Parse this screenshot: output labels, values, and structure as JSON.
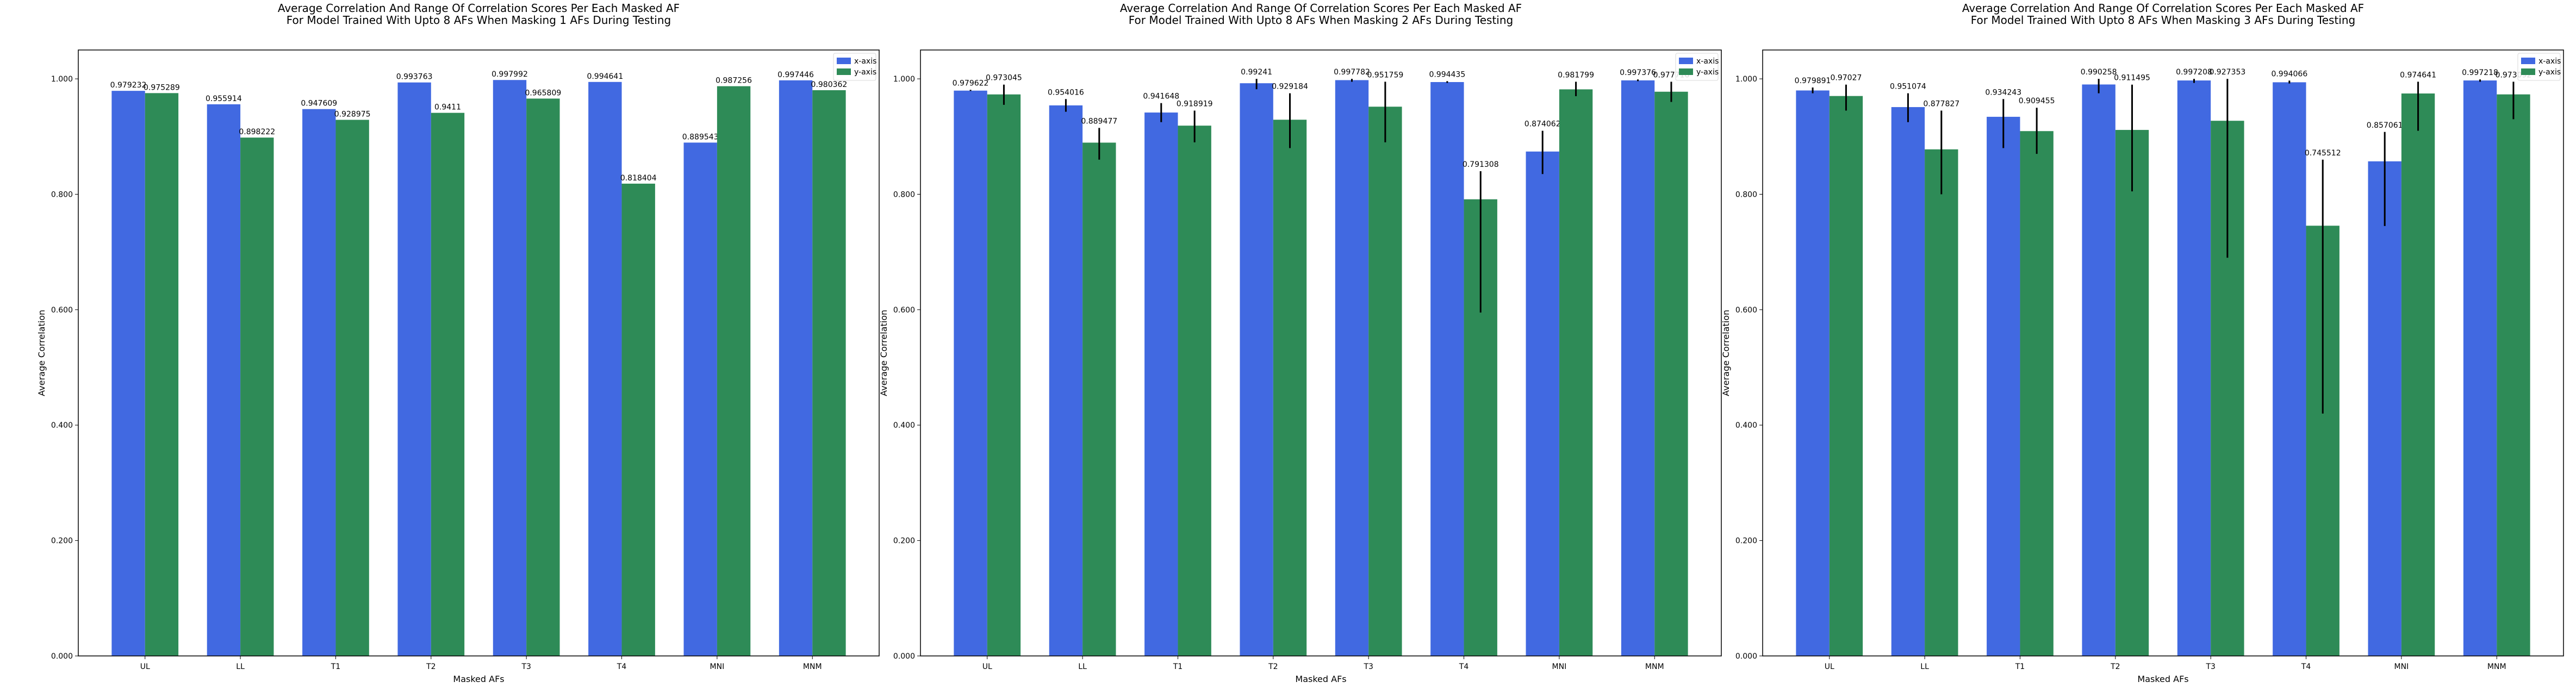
{
  "colors": {
    "x_series": "#4169e1",
    "y_series": "#2e8b57",
    "error_bar": "#000000",
    "axis": "#000000",
    "background": "#ffffff"
  },
  "chart_data": [
    {
      "type": "bar",
      "title_line1": "Average Correlation And Range Of Correlation Scores Per Each Masked AF",
      "title_line2": "For Model Trained With Upto 8 AFs When Masking 1 AFs During Testing",
      "xlabel": "Masked AFs",
      "ylabel": "Average Correlation",
      "ylim": [
        0,
        1.05
      ],
      "yticks": [
        "0.000",
        "0.200",
        "0.400",
        "0.600",
        "0.800",
        "1.000"
      ],
      "yticks_values": [
        0,
        0.2,
        0.4,
        0.6,
        0.8,
        1.0
      ],
      "legend_position": "top-right",
      "categories": [
        "UL",
        "LL",
        "T1",
        "T2",
        "T3",
        "T4",
        "MNI",
        "MNM"
      ],
      "series": [
        {
          "name": "x-axis",
          "values": [
            0.979232,
            0.955914,
            0.947609,
            0.993763,
            0.997992,
            0.994641,
            0.889543,
            0.997446
          ],
          "labels": [
            "0.979232",
            "0.955914",
            "0.947609",
            "0.993763",
            "0.997992",
            "0.994641",
            "0.889543",
            "0.997446"
          ]
        },
        {
          "name": "y-axis",
          "values": [
            0.975289,
            0.898222,
            0.928975,
            0.9411,
            0.965809,
            0.818404,
            0.987256,
            0.980362
          ],
          "labels": [
            "0.975289",
            "0.898222",
            "0.928975",
            "0.9411",
            "0.965809",
            "0.818404",
            "0.987256",
            "0.980362"
          ]
        }
      ]
    },
    {
      "type": "bar",
      "title_line1": "Average Correlation And Range Of Correlation Scores Per Each Masked AF",
      "title_line2": "For Model Trained With Upto 8 AFs When Masking 2 AFs During Testing",
      "xlabel": "Masked AFs",
      "ylabel": "Average Correlation",
      "ylim": [
        0,
        1.05
      ],
      "yticks": [
        "0.000",
        "0.200",
        "0.400",
        "0.600",
        "0.800",
        "1.000"
      ],
      "yticks_values": [
        0,
        0.2,
        0.4,
        0.6,
        0.8,
        1.0
      ],
      "legend_position": "top-right",
      "categories": [
        "UL",
        "LL",
        "T1",
        "T2",
        "T3",
        "T4",
        "MNI",
        "MNM"
      ],
      "series": [
        {
          "name": "x-axis",
          "values": [
            0.979622,
            0.954016,
            0.941648,
            0.99241,
            0.997782,
            0.994435,
            0.874062,
            0.997376
          ],
          "labels": [
            "0.979622",
            "0.954016",
            "0.941648",
            "0.99241",
            "0.997782",
            "0.994435",
            "0.874062",
            "0.997376"
          ],
          "err_low": [
            0.979,
            0.943,
            0.925,
            0.982,
            0.995,
            0.993,
            0.835,
            0.996
          ],
          "err_high": [
            0.981,
            0.965,
            0.958,
            1.0,
            1.0,
            0.996,
            0.91,
            0.999
          ]
        },
        {
          "name": "y-axis",
          "values": [
            0.973045,
            0.889477,
            0.918919,
            0.929184,
            0.951759,
            0.791308,
            0.981799,
            0.977716
          ],
          "labels": [
            "0.973045",
            "0.889477",
            "0.918919",
            "0.929184",
            "0.951759",
            "0.791308",
            "0.981799",
            "0.977716"
          ],
          "err_low": [
            0.955,
            0.86,
            0.89,
            0.88,
            0.89,
            0.595,
            0.97,
            0.96
          ],
          "err_high": [
            0.99,
            0.915,
            0.945,
            0.975,
            0.995,
            0.84,
            0.995,
            0.995
          ]
        }
      ]
    },
    {
      "type": "bar",
      "title_line1": "Average Correlation And Range Of Correlation Scores Per Each Masked AF",
      "title_line2": "For Model Trained With Upto 8 AFs When Masking 3 AFs During Testing",
      "xlabel": "Masked AFs",
      "ylabel": "Average Correlation",
      "ylim": [
        0,
        1.05
      ],
      "yticks": [
        "0.000",
        "0.200",
        "0.400",
        "0.600",
        "0.800",
        "1.000"
      ],
      "yticks_values": [
        0,
        0.2,
        0.4,
        0.6,
        0.8,
        1.0
      ],
      "legend_position": "top-right",
      "categories": [
        "UL",
        "LL",
        "T1",
        "T2",
        "T3",
        "T4",
        "MNI",
        "MNM"
      ],
      "series": [
        {
          "name": "x-axis",
          "values": [
            0.979891,
            0.951074,
            0.934243,
            0.990258,
            0.997208,
            0.994066,
            0.857061,
            0.997218
          ],
          "labels": [
            "0.979891",
            "0.951074",
            "0.934243",
            "0.990258",
            "0.997208",
            "0.994066",
            "0.857061",
            "0.997218"
          ],
          "err_low": [
            0.975,
            0.925,
            0.88,
            0.975,
            0.993,
            0.992,
            0.745,
            0.995
          ],
          "err_high": [
            0.985,
            0.975,
            0.965,
            1.0,
            1.0,
            0.997,
            0.908,
            0.999
          ]
        },
        {
          "name": "y-axis",
          "values": [
            0.97027,
            0.877827,
            0.909455,
            0.911495,
            0.927353,
            0.745512,
            0.974641,
            0.973092
          ],
          "labels": [
            "0.97027",
            "0.877827",
            "0.909455",
            "0.911495",
            "0.927353",
            "0.745512",
            "0.974641",
            "0.973092"
          ],
          "err_low": [
            0.945,
            0.8,
            0.87,
            0.805,
            0.69,
            0.42,
            0.91,
            0.93
          ],
          "err_high": [
            0.99,
            0.945,
            0.95,
            0.99,
            1.0,
            0.86,
            0.995,
            0.995
          ]
        }
      ]
    }
  ]
}
